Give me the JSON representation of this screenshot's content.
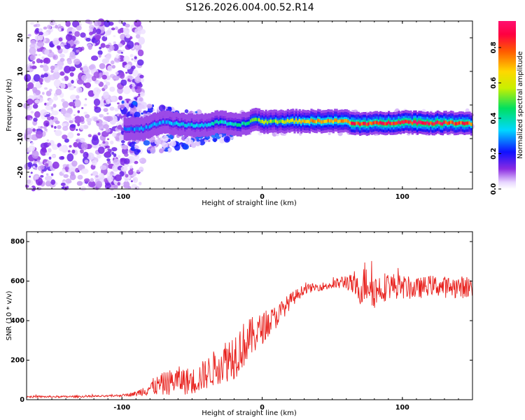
{
  "title": "S126.2026.004.00.52.R14",
  "chart_data": [
    {
      "type": "heatmap",
      "xlabel": "Height of straight line (km)",
      "ylabel": "Frequency (Hz)",
      "xlim": [
        -168,
        150
      ],
      "ylim": [
        -25,
        25
      ],
      "xticks": [
        -100,
        0,
        100
      ],
      "yticks": [
        -20,
        -10,
        0,
        10,
        20
      ],
      "colorbar": {
        "label": "Normalized spectral amplitude",
        "range": [
          0,
          0.95
        ],
        "ticks": [
          "0.0",
          "0.2",
          "0.4",
          "0.6",
          "0.8"
        ]
      },
      "signal_track": {
        "description_free": true,
        "x": [
          -98,
          -85,
          -70,
          -55,
          -40,
          -30,
          -20,
          -10,
          -5,
          0,
          20,
          40,
          60,
          65,
          90,
          100,
          120,
          140,
          150
        ],
        "frequency": [
          -7,
          -7,
          -5,
          -6,
          -6,
          -5,
          -6,
          -5.5,
          -4,
          -5,
          -4.8,
          -4.8,
          -4.8,
          -5.6,
          -5.4,
          -5,
          -5.4,
          -5.3,
          -5.5
        ],
        "amplitude": [
          0.25,
          0.3,
          0.3,
          0.35,
          0.35,
          0.4,
          0.4,
          0.45,
          0.5,
          0.55,
          0.6,
          0.75,
          0.7,
          0.85,
          0.85,
          0.9,
          0.9,
          0.85,
          0.8
        ]
      }
    },
    {
      "type": "line",
      "xlabel": "Height of straight line (km)",
      "ylabel": "SNR (10 * v/v)",
      "xlim": [
        -168,
        150
      ],
      "ylim": [
        0,
        850
      ],
      "xticks": [
        -100,
        0,
        100
      ],
      "yticks": [
        0,
        200,
        400,
        600,
        800
      ],
      "series": [
        {
          "name": "SNR",
          "color": "#e8201c",
          "x": [
            -168,
            -140,
            -110,
            -100,
            -90,
            -80,
            -70,
            -60,
            -50,
            -40,
            -30,
            -20,
            -10,
            0,
            10,
            20,
            30,
            40,
            50,
            60,
            70,
            75,
            80,
            90,
            100,
            110,
            120,
            130,
            140,
            150
          ],
          "y": [
            15,
            15,
            18,
            22,
            30,
            60,
            80,
            100,
            90,
            130,
            180,
            230,
            300,
            360,
            420,
            500,
            560,
            570,
            580,
            600,
            550,
            620,
            550,
            580,
            570,
            560,
            580,
            570,
            570,
            570
          ],
          "noise": [
            5,
            5,
            5,
            6,
            12,
            40,
            60,
            70,
            70,
            80,
            100,
            130,
            110,
            80,
            60,
            40,
            25,
            20,
            25,
            40,
            70,
            140,
            90,
            70,
            60,
            55,
            50,
            55,
            55,
            60
          ]
        }
      ]
    }
  ]
}
